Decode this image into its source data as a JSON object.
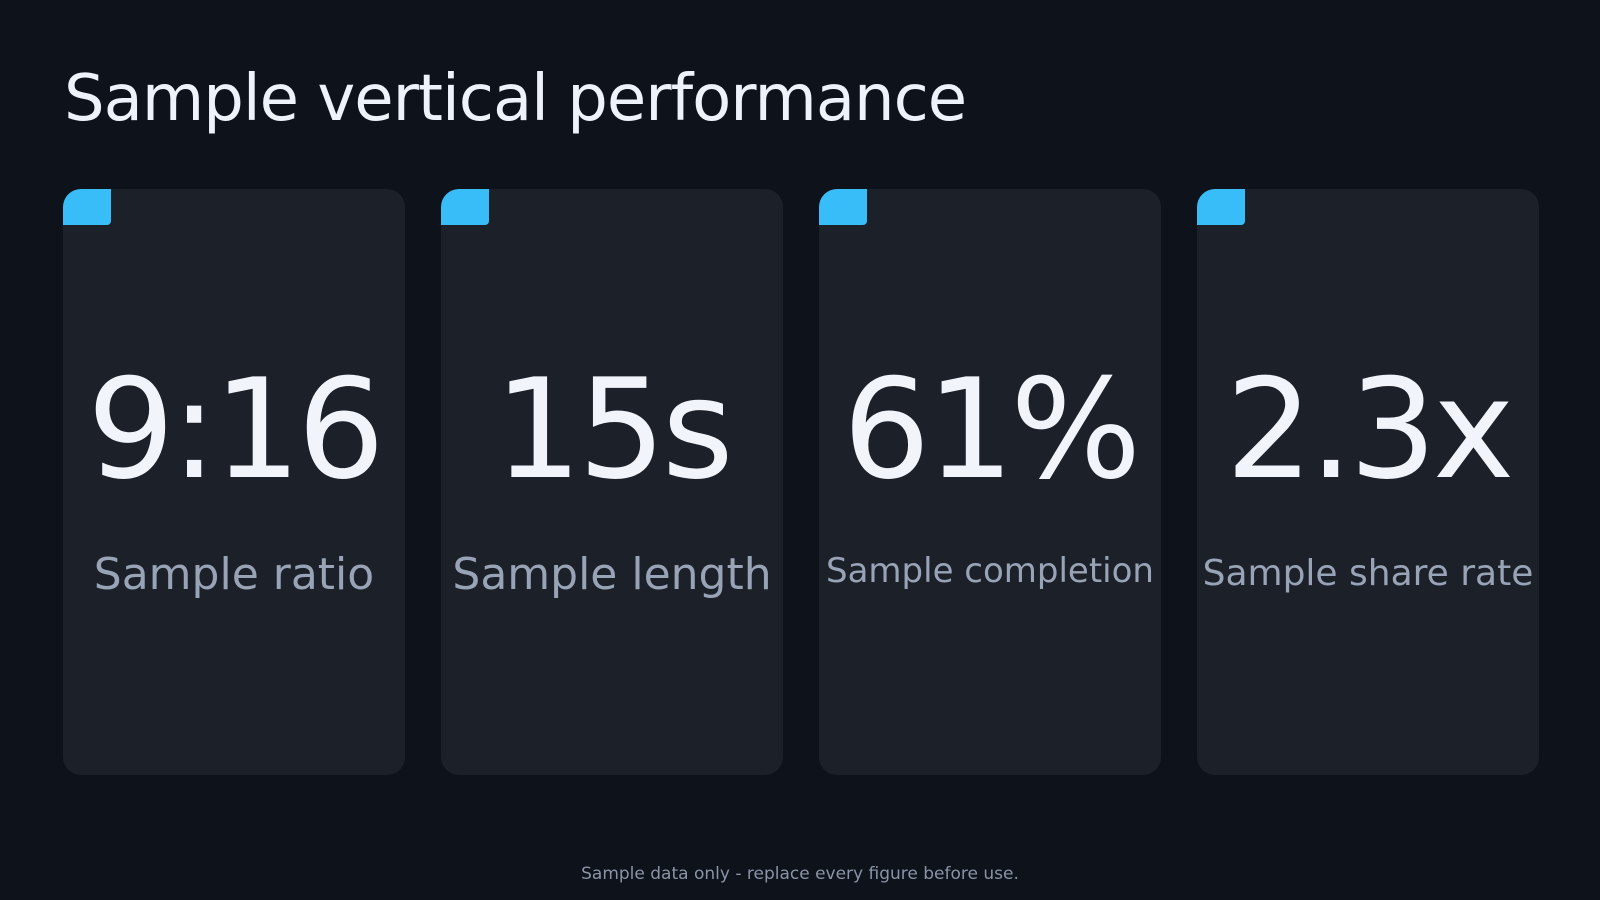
{
  "header": {
    "title": "Sample vertical performance"
  },
  "cards": [
    {
      "value": "9:16",
      "label": "Sample ratio"
    },
    {
      "value": "15s",
      "label": "Sample length"
    },
    {
      "value": "61%",
      "label": "Sample completion"
    },
    {
      "value": "2.3x",
      "label": "Sample share rate"
    }
  ],
  "footer": {
    "note": "Sample data only - replace every figure before use."
  }
}
